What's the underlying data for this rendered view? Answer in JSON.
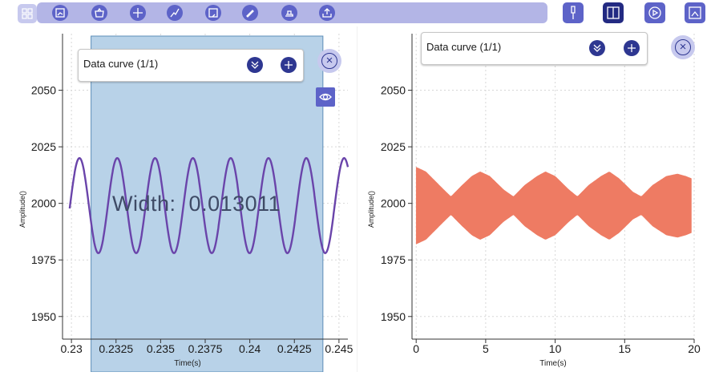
{
  "toolbar": {
    "grid_icon": "grid-icon",
    "tools": [
      "chart-icon",
      "basket-icon",
      "crosshair-icon",
      "trend-icon",
      "frame-icon",
      "pen-icon",
      "stamp-icon",
      "export-icon"
    ],
    "right_buttons": [
      "probe-icon",
      "split-view-icon",
      "play-circle-icon",
      "image-edit-icon"
    ]
  },
  "left_panel": {
    "curve_box": {
      "label": "Data curve (1/1)",
      "expand_icon": "double-chevron-down-icon",
      "add_icon": "plus-icon"
    },
    "close_icon": "close-circle-icon",
    "eye_icon": "eye-icon",
    "width_label": "Width:",
    "width_value": "0.013011",
    "chart": {
      "xlabel": "Time(s)",
      "ylabel": "Amplitude()",
      "xticks": [
        "0.23",
        "0.2325",
        "0.235",
        "0.2375",
        "0.24",
        "0.2425",
        "0.245"
      ],
      "yticks": [
        "1950",
        "1975",
        "2000",
        "2025",
        "2050"
      ]
    }
  },
  "right_panel": {
    "curve_box": {
      "label": "Data curve (1/1)",
      "expand_icon": "double-chevron-down-icon",
      "add_icon": "plus-icon"
    },
    "close_icon": "close-circle-icon",
    "chart": {
      "xlabel": "Time(s)",
      "ylabel": "Amplitude()",
      "xticks": [
        "0",
        "5",
        "10",
        "15",
        "20"
      ],
      "yticks": [
        "1950",
        "1975",
        "2000",
        "2025",
        "2050"
      ]
    }
  },
  "chart_data": [
    {
      "type": "line",
      "xlabel": "Time(s)",
      "ylabel": "Amplitude()",
      "xlim": [
        0.2295,
        0.2455
      ],
      "ylim": [
        1940,
        2075
      ],
      "series": [
        {
          "color": "#6a44aa",
          "amplitude": 21,
          "offset": 1999,
          "period": 0.00212,
          "phase_peak_x": 0.23045
        }
      ],
      "selection": {
        "x_start": 0.2311,
        "x_end": 0.2441,
        "width": 0.013011,
        "color": "#b8d2e8"
      },
      "grid": true
    },
    {
      "type": "area",
      "xlabel": "Time(s)",
      "ylabel": "Amplitude()",
      "xlim": [
        -0.3,
        20
      ],
      "ylim": [
        1940,
        2075
      ],
      "series": [
        {
          "color": "#ee7b63",
          "center": 1999,
          "envelope": [
            [
              0,
              17
            ],
            [
              0.7,
              15
            ],
            [
              2,
              7
            ],
            [
              2.5,
              4
            ],
            [
              3.3,
              9
            ],
            [
              4,
              13
            ],
            [
              4.6,
              15
            ],
            [
              5.3,
              13
            ],
            [
              6.3,
              7
            ],
            [
              7,
              4
            ],
            [
              7.8,
              9
            ],
            [
              8.7,
              13
            ],
            [
              9.3,
              15
            ],
            [
              10,
              13
            ],
            [
              11,
              7
            ],
            [
              11.6,
              4
            ],
            [
              12.4,
              9
            ],
            [
              13.3,
              13
            ],
            [
              13.9,
              15
            ],
            [
              14.6,
              12
            ],
            [
              15.6,
              6
            ],
            [
              16.2,
              4
            ],
            [
              17,
              9
            ],
            [
              18,
              13
            ],
            [
              18.8,
              14
            ],
            [
              19.4,
              13
            ],
            [
              19.8,
              12
            ]
          ]
        }
      ],
      "grid": true
    }
  ]
}
